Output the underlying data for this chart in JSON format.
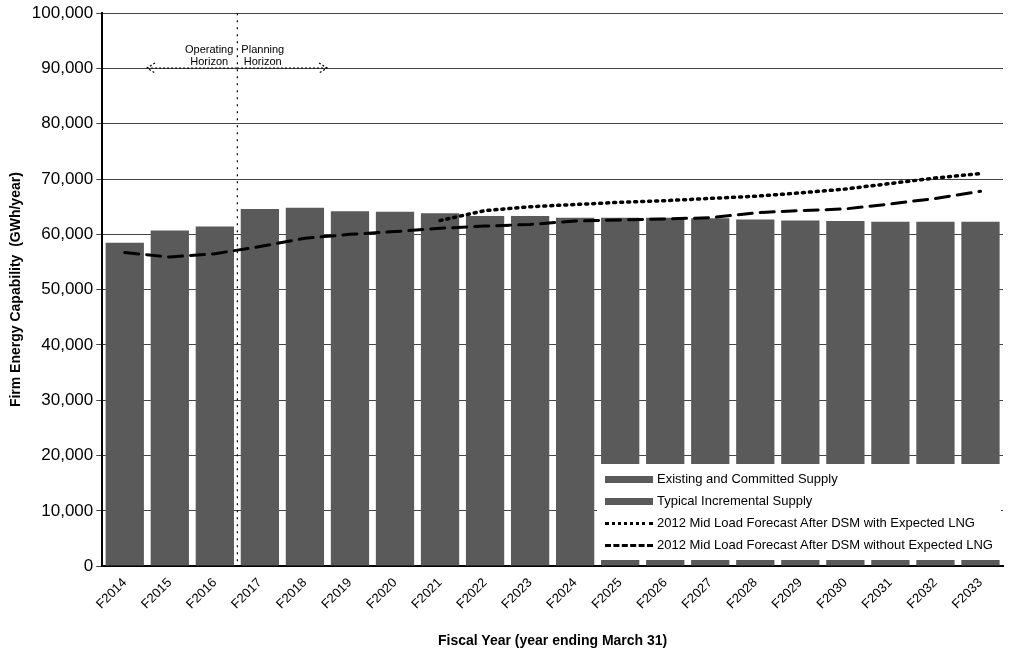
{
  "chart_data": {
    "type": "bar",
    "stacked": true,
    "xlabel": "Fiscal Year (year ending March 31)",
    "ylabel": "Firm Energy Capability  (GWh/year)",
    "categories": [
      "F2014",
      "F2015",
      "F2016",
      "F2017",
      "F2018",
      "F2019",
      "F2020",
      "F2021",
      "F2022",
      "F2023",
      "F2024",
      "F2025",
      "F2026",
      "F2027",
      "F2028",
      "F2029",
      "F2030",
      "F2031",
      "F2032",
      "F2033"
    ],
    "series": [
      {
        "name": "Existing and Committed Supply",
        "color": "#5a5a5a",
        "values": [
          58500,
          60700,
          61400,
          64600,
          64800,
          64200,
          64100,
          63800,
          63300,
          63300,
          63000,
          63000,
          63000,
          62900,
          62700,
          62500,
          62400,
          62300,
          62300,
          62300
        ]
      },
      {
        "name": "Typical Incremental Supply",
        "color": "#5a5a5a",
        "values": [
          null,
          null,
          null,
          null,
          null,
          null,
          null,
          null,
          null,
          null,
          null,
          null,
          null,
          null,
          null,
          null,
          null,
          null,
          null,
          null
        ]
      },
      {
        "name": "2012 Mid Load Forecast After DSM with Expected LNG",
        "type": "line",
        "color": "#000000",
        "line_style": "dotted",
        "values": [
          null,
          null,
          null,
          null,
          null,
          null,
          null,
          62500,
          64300,
          65000,
          65400,
          65800,
          66100,
          66500,
          66900,
          67500,
          68200,
          69200,
          70200,
          71000
        ]
      },
      {
        "name": "2012 Mid Load Forecast After DSM without Expected LNG",
        "type": "line",
        "color": "#000000",
        "line_style": "dashed",
        "values": [
          56700,
          55900,
          56500,
          57800,
          59300,
          60000,
          60500,
          61100,
          61500,
          61800,
          62400,
          62600,
          62800,
          63000,
          63900,
          64300,
          64600,
          65500,
          66500,
          67800
        ]
      }
    ],
    "ylim": [
      0,
      100000
    ],
    "yticks": [
      0,
      {
        "value": 10000,
        "label": "10,000"
      },
      {
        "value": 20000,
        "label": "20,000"
      },
      {
        "value": 30000,
        "label": "30,000"
      },
      {
        "value": 40000,
        "label": "40,000"
      },
      {
        "value": 50000,
        "label": "50,000"
      },
      {
        "value": 60000,
        "label": "60,000"
      },
      {
        "value": 70000,
        "label": "70,000"
      },
      {
        "value": 80000,
        "label": "80,000"
      },
      {
        "value": 90000,
        "label": "90,000"
      },
      {
        "value": 100000,
        "label": "100,000"
      }
    ],
    "grid": "y",
    "legend": "bottom right",
    "marker": "none",
    "ref_lines": [
      {
        "axis": "x",
        "value": "F2017",
        "line_style": "dotted",
        "color": "#000000"
      }
    ],
    "annotations": [
      "Operating Horizon",
      "Planning Horizon"
    ]
  }
}
